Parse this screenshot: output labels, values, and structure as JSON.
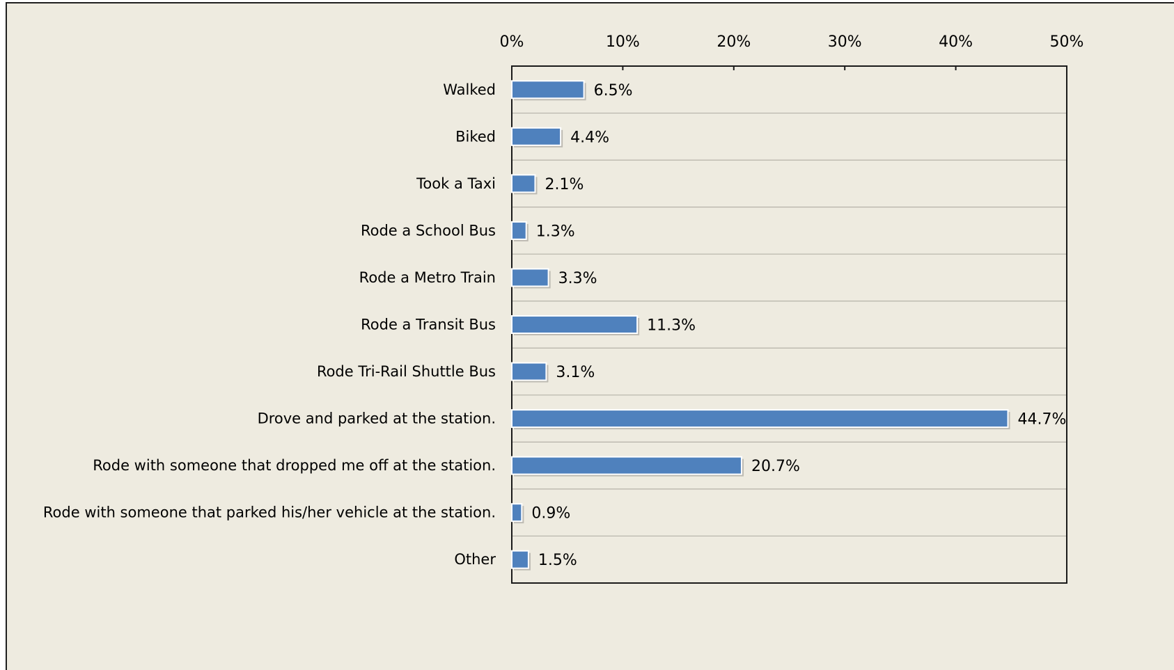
{
  "chart_data": {
    "type": "bar",
    "orientation": "horizontal",
    "title": "",
    "xlabel": "",
    "ylabel": "",
    "xlim": [
      0,
      50
    ],
    "x_ticks": [
      "0%",
      "10%",
      "20%",
      "30%",
      "40%",
      "50%"
    ],
    "x_tick_values": [
      0,
      10,
      20,
      30,
      40,
      50
    ],
    "x_axis_position": "top",
    "grid": "horizontal",
    "legend": "none",
    "bar_color": "#4f81bd",
    "background_color": "#eeebe0",
    "categories": [
      "Walked",
      "Biked",
      "Took a Taxi",
      "Rode a School Bus",
      "Rode a Metro Train",
      "Rode a Transit Bus",
      "Rode Tri-Rail Shuttle Bus",
      "Drove and parked at the station.",
      "Rode with someone that dropped me off at the station.",
      "Rode with someone that parked his/her vehicle at the station.",
      "Other"
    ],
    "values": [
      6.5,
      4.4,
      2.1,
      1.3,
      3.3,
      11.3,
      3.1,
      44.7,
      20.7,
      0.9,
      1.5
    ],
    "data_labels": [
      "6.5%",
      "4.4%",
      "2.1%",
      "1.3%",
      "3.3%",
      "11.3%",
      "3.1%",
      "44.7%",
      "20.7%",
      "0.9%",
      "1.5%"
    ]
  }
}
